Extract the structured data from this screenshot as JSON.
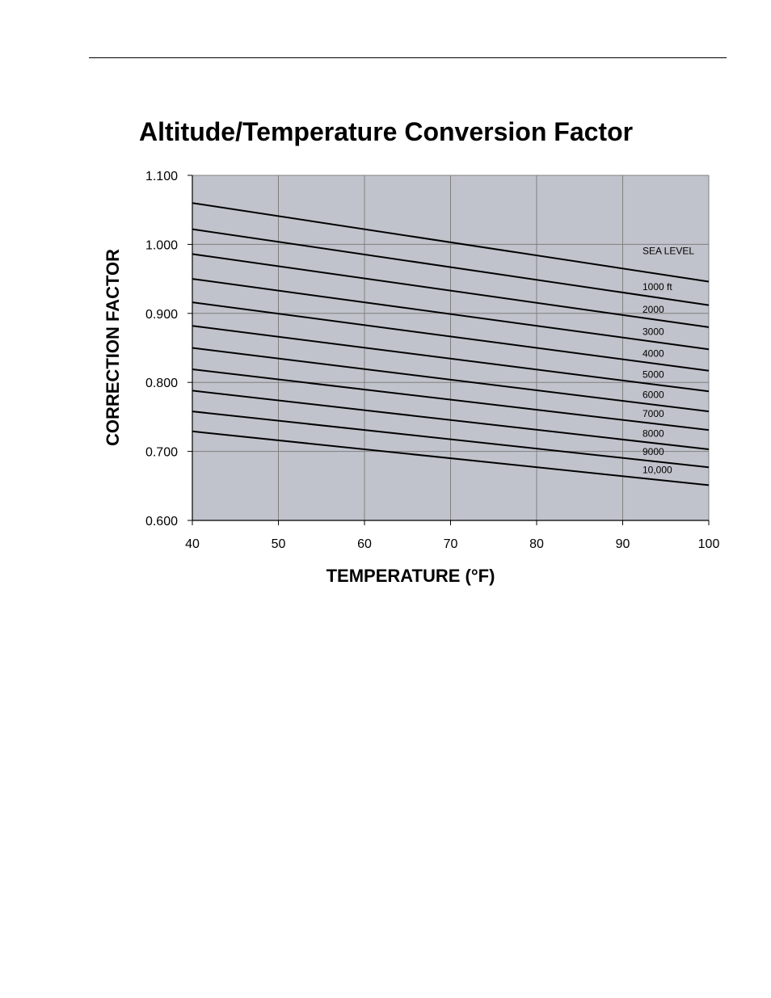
{
  "chart_data": {
    "type": "line",
    "title": "Altitude/Temperature Conversion Factor",
    "xlabel": "TEMPERATURE (°F)",
    "ylabel": "CORRECTION FACTOR",
    "xlim": [
      40,
      100
    ],
    "ylim": [
      0.6,
      1.1
    ],
    "xticks": [
      40,
      50,
      60,
      70,
      80,
      90,
      100
    ],
    "yticks": [
      0.6,
      0.7,
      0.8,
      0.9,
      1.0,
      1.1
    ],
    "x_tick_labels": [
      "40",
      "50",
      "60",
      "70",
      "80",
      "90",
      "100"
    ],
    "y_tick_labels": [
      "0.600",
      "0.700",
      "0.800",
      "0.900",
      "1.000",
      "1.100"
    ],
    "grid": true,
    "plot_background": "#c0c3cb",
    "grid_color": "#808080",
    "line_color": "#000000",
    "series": [
      {
        "name": "SEA LEVEL",
        "x": [
          40,
          100
        ],
        "values": [
          1.06,
          0.946
        ]
      },
      {
        "name": "1000 ft",
        "x": [
          40,
          100
        ],
        "values": [
          1.022,
          0.912
        ]
      },
      {
        "name": "2000",
        "x": [
          40,
          100
        ],
        "values": [
          0.986,
          0.88
        ]
      },
      {
        "name": "3000",
        "x": [
          40,
          100
        ],
        "values": [
          0.95,
          0.848
        ]
      },
      {
        "name": "4000",
        "x": [
          40,
          100
        ],
        "values": [
          0.916,
          0.817
        ]
      },
      {
        "name": "5000",
        "x": [
          40,
          100
        ],
        "values": [
          0.882,
          0.787
        ]
      },
      {
        "name": "6000",
        "x": [
          40,
          100
        ],
        "values": [
          0.85,
          0.758
        ]
      },
      {
        "name": "7000",
        "x": [
          40,
          100
        ],
        "values": [
          0.819,
          0.731
        ]
      },
      {
        "name": "8000",
        "x": [
          40,
          100
        ],
        "values": [
          0.788,
          0.703
        ]
      },
      {
        "name": "9000",
        "x": [
          40,
          100
        ],
        "values": [
          0.758,
          0.677
        ]
      },
      {
        "name": "10,000",
        "x": [
          40,
          100
        ],
        "values": [
          0.729,
          0.651
        ]
      }
    ]
  }
}
